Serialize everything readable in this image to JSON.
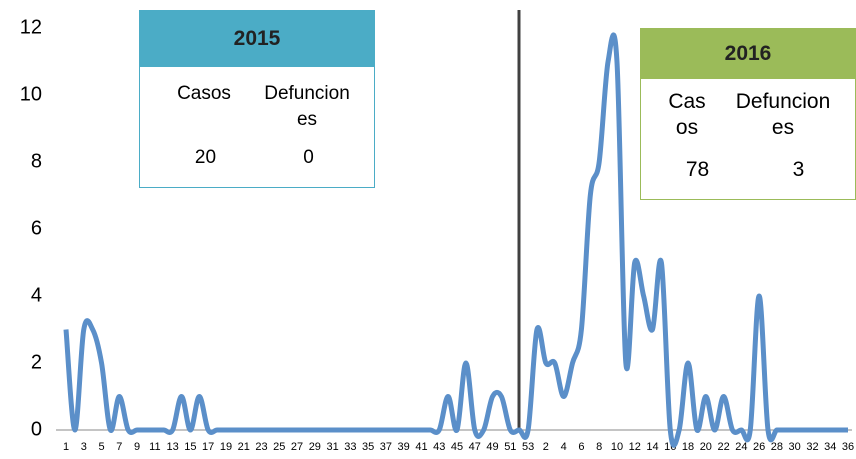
{
  "chart_data": {
    "type": "line",
    "categories": [
      "1",
      null,
      "3",
      null,
      "5",
      null,
      "7",
      null,
      "9",
      null,
      "11",
      null,
      "13",
      null,
      "15",
      null,
      "17",
      null,
      "19",
      null,
      "21",
      null,
      "23",
      null,
      "25",
      null,
      "27",
      null,
      "29",
      null,
      "31",
      null,
      "33",
      null,
      "35",
      null,
      "37",
      null,
      "39",
      null,
      "41",
      null,
      "43",
      null,
      "45",
      null,
      "47",
      null,
      "49",
      null,
      "51",
      null,
      "53",
      null,
      "2",
      null,
      "4",
      null,
      "6",
      null,
      "8",
      null,
      "10",
      null,
      "12",
      null,
      "14",
      null,
      "16",
      null,
      "18",
      null,
      "20",
      null,
      "22",
      null,
      "24",
      null,
      "26",
      null,
      "28",
      null,
      "30",
      null,
      "32",
      null,
      "34",
      null,
      "36"
    ],
    "series": [
      {
        "color": "#5b8fc9",
        "values": [
          3,
          0,
          3,
          3,
          2,
          0,
          1,
          0,
          0,
          0,
          0,
          0,
          0,
          1,
          0,
          1,
          0,
          0,
          0,
          0,
          0,
          0,
          0,
          0,
          0,
          0,
          0,
          0,
          0,
          0,
          0,
          0,
          0,
          0,
          0,
          0,
          0,
          0,
          0,
          0,
          0,
          0,
          0,
          1,
          0,
          2,
          0,
          0,
          1,
          1,
          0,
          0,
          0,
          3,
          2,
          2,
          1,
          2,
          3,
          7,
          8,
          11,
          11,
          2,
          5,
          4,
          3,
          5,
          0,
          0,
          2,
          0,
          1,
          0,
          1,
          0,
          0,
          0,
          4,
          0,
          0,
          0,
          0,
          0,
          0,
          0,
          0,
          0,
          0
        ]
      }
    ],
    "ylim": [
      0,
      12
    ],
    "yticks": [
      0,
      2,
      4,
      6,
      8,
      10,
      12
    ],
    "annotations": [
      {
        "title": "2015",
        "color": "#4bacc6",
        "headers": [
          "Casos",
          "Defunciones"
        ],
        "values": [
          20,
          0
        ]
      },
      {
        "title": "2016",
        "color": "#9bbb59",
        "headers": [
          "Casos",
          "Defunciones"
        ],
        "values": [
          78,
          3
        ]
      }
    ]
  }
}
